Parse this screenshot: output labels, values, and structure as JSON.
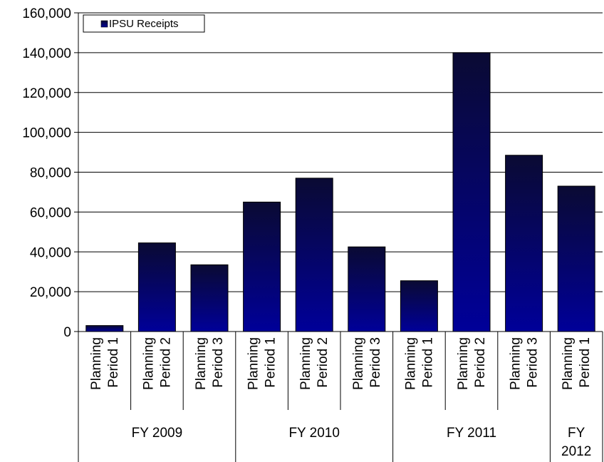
{
  "chart_data": {
    "type": "bar",
    "categories": [
      "Planning Period 1",
      "Planning Period 2",
      "Planning Period 3",
      "Planning Period 1",
      "Planning Period 2",
      "Planning Period 3",
      "Planning Period 1",
      "Planning Period 2",
      "Planning Period 3",
      "Planning Period 1"
    ],
    "category_lines": [
      [
        "Planning",
        "Period 1"
      ],
      [
        "Planning",
        "Period 2"
      ],
      [
        "Planning",
        "Period 3"
      ],
      [
        "Planning",
        "Period 1"
      ],
      [
        "Planning",
        "Period 2"
      ],
      [
        "Planning",
        "Period 3"
      ],
      [
        "Planning",
        "Period 1"
      ],
      [
        "Planning",
        "Period 2"
      ],
      [
        "Planning",
        "Period 3"
      ],
      [
        "Planning",
        "Period 1"
      ]
    ],
    "groups": [
      {
        "label": [
          "FY 2009"
        ],
        "span": 3
      },
      {
        "label": [
          "FY 2010"
        ],
        "span": 3
      },
      {
        "label": [
          "FY 2011"
        ],
        "span": 3
      },
      {
        "label": [
          "FY",
          "2012"
        ],
        "span": 1
      }
    ],
    "series": [
      {
        "name": "IPSU Receipts",
        "values": [
          3000,
          44500,
          33500,
          65000,
          77000,
          42500,
          25500,
          140000,
          88500,
          73000
        ]
      }
    ],
    "yticks": [
      "0",
      "20,000",
      "40,000",
      "60,000",
      "80,000",
      "100,000",
      "120,000",
      "140,000",
      "160,000"
    ],
    "ylim": [
      0,
      160000
    ],
    "ytick_step": 20000,
    "title": "",
    "xlabel": "",
    "ylabel": "",
    "grid": true,
    "legend_position": "top-left",
    "colors": {
      "bar_top": "#0a0a33",
      "bar_bottom": "#000099",
      "gridline": "#000000",
      "axis": "#000000"
    }
  }
}
